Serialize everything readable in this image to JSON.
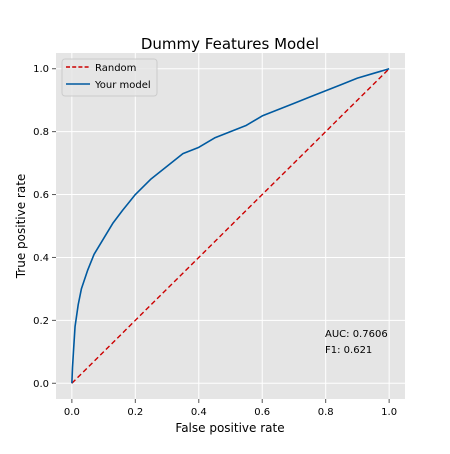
{
  "chart_data": {
    "type": "line",
    "title": "Dummy Features Model",
    "xlabel": "False positive rate",
    "ylabel": "True positive rate",
    "xlim": [
      -0.05,
      1.05
    ],
    "ylim": [
      -0.05,
      1.05
    ],
    "xticks": [
      0.0,
      0.2,
      0.4,
      0.6,
      0.8,
      1.0
    ],
    "yticks": [
      0.0,
      0.2,
      0.4,
      0.6,
      0.8,
      1.0
    ],
    "xtick_labels": [
      "0.0",
      "0.2",
      "0.4",
      "0.6",
      "0.8",
      "1.0"
    ],
    "ytick_labels": [
      "0.0",
      "0.2",
      "0.4",
      "0.6",
      "0.8",
      "1.0"
    ],
    "grid": true,
    "background_color": "#e5e5e5",
    "legend_position": "top-left",
    "series": [
      {
        "name": "Random",
        "color": "#cc0000",
        "style": "dashed",
        "x": [
          0,
          1
        ],
        "y": [
          0,
          1
        ]
      },
      {
        "name": "Your model",
        "color": "#005aa0",
        "style": "solid",
        "x": [
          0,
          0.002,
          0.005,
          0.01,
          0.02,
          0.03,
          0.05,
          0.07,
          0.1,
          0.13,
          0.16,
          0.2,
          0.25,
          0.3,
          0.35,
          0.4,
          0.45,
          0.5,
          0.55,
          0.6,
          0.65,
          0.7,
          0.75,
          0.8,
          0.85,
          0.9,
          0.95,
          1.0
        ],
        "y": [
          0,
          0.05,
          0.1,
          0.18,
          0.25,
          0.3,
          0.36,
          0.41,
          0.46,
          0.51,
          0.55,
          0.6,
          0.65,
          0.69,
          0.73,
          0.75,
          0.78,
          0.8,
          0.82,
          0.85,
          0.87,
          0.89,
          0.91,
          0.93,
          0.95,
          0.97,
          0.985,
          1.0
        ]
      }
    ],
    "annotations": [
      "AUC: 0.7606",
      "F1: 0.621"
    ]
  }
}
